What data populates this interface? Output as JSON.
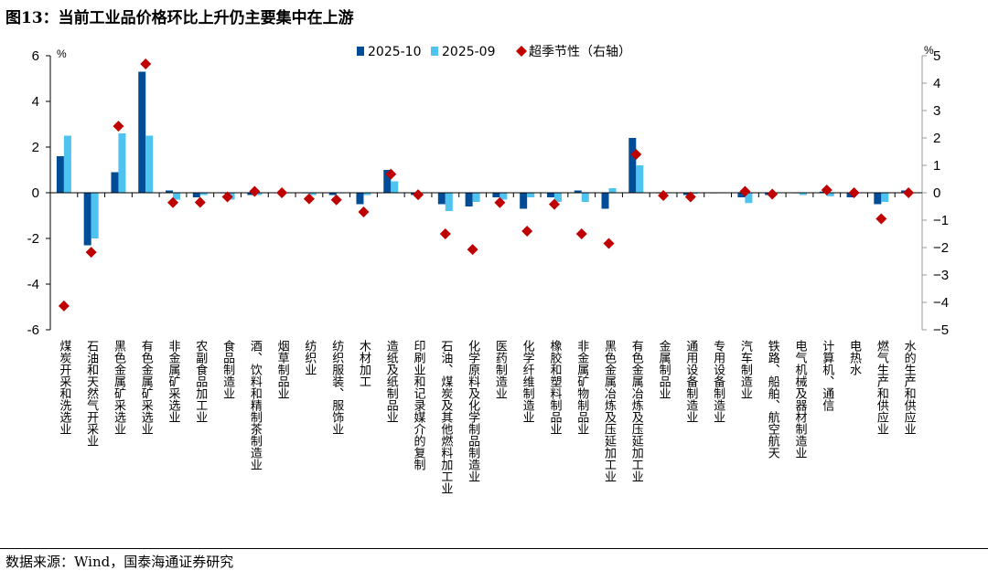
{
  "title": "图13：当前工业品价格环比上升仍主要集中在上游",
  "source": "数据来源：Wind，国泰海通证券研究",
  "chart_data": {
    "type": "bar",
    "title": "",
    "left_unit": "%",
    "right_unit": "%",
    "ylim_left": [
      -6,
      6
    ],
    "yticks_left": [
      -6,
      -4,
      -2,
      0,
      2,
      4,
      6
    ],
    "ylim_right": [
      -5,
      5
    ],
    "yticks_right": [
      -5,
      -4,
      -3,
      -2,
      -1,
      0,
      1,
      2,
      3,
      4,
      5
    ],
    "legend_placement": "top",
    "grid": false,
    "categories": [
      "煤炭开采和洗选业",
      "石油和天然气开采业",
      "黑色金属矿采选业",
      "有色金属矿采选业",
      "非金属矿采选业",
      "农副食品加工业",
      "食品制造业",
      "酒、饮料和精制茶制造业",
      "烟草制品业",
      "纺织业",
      "纺织服装、服饰业",
      "木材加工",
      "造纸及纸制品业",
      "印刷业和记录媒介的复制",
      "石油、煤炭及其他燃料加工业",
      "化学原料及化学制品制造业",
      "医药制造业",
      "化学纤维制造业",
      "橡胶和塑料制品业",
      "非金属矿物制品业",
      "黑色金属冶炼及压延加工业",
      "有色金属冶炼及压延加工业",
      "金属制品业",
      "通用设备制造业",
      "专用设备制造业",
      "汽车制造业",
      "铁路、船舶、航空航天",
      "电气机械及器材制造业",
      "计算机、通信",
      "电热水",
      "燃气生产和供应业",
      "水的生产和供应业"
    ],
    "series": [
      {
        "name": "2025-10",
        "kind": "bar",
        "axis": "left",
        "color": "#004C97",
        "values": [
          1.6,
          -2.3,
          0.9,
          5.3,
          0.1,
          -0.2,
          0,
          -0.1,
          0,
          0,
          -0.1,
          -0.5,
          1.0,
          -0.1,
          -0.5,
          -0.6,
          -0.2,
          -0.7,
          -0.2,
          0.1,
          -0.7,
          2.4,
          0,
          -0.1,
          0,
          -0.2,
          -0.1,
          0,
          0.05,
          -0.2,
          -0.5,
          0.1
        ]
      },
      {
        "name": "2025-09",
        "kind": "bar",
        "axis": "left",
        "color": "#4FC3F0",
        "values": [
          2.5,
          -2.0,
          2.6,
          2.5,
          -0.3,
          -0.1,
          -0.3,
          -0.1,
          0,
          -0.1,
          0,
          -0.1,
          0.5,
          0,
          -0.8,
          -0.4,
          -0.3,
          -0.2,
          -0.4,
          -0.4,
          0.2,
          1.2,
          0,
          -0.05,
          0,
          -0.45,
          0,
          -0.1,
          -0.15,
          0,
          -0.4,
          0
        ]
      },
      {
        "name": "超季节性（右轴）",
        "kind": "scatter",
        "marker": "diamond",
        "axis": "right",
        "color": "#C00000",
        "values": [
          -4.13,
          -2.17,
          2.43,
          4.7,
          -0.36,
          -0.35,
          -0.15,
          0.05,
          0,
          -0.22,
          -0.26,
          -0.7,
          0.68,
          -0.07,
          -1.5,
          -2.07,
          -0.36,
          -1.4,
          -0.42,
          -1.5,
          -1.85,
          1.4,
          -0.1,
          -0.15,
          null,
          0.05,
          -0.05,
          null,
          0.1,
          0,
          -0.95,
          0
        ]
      }
    ]
  }
}
